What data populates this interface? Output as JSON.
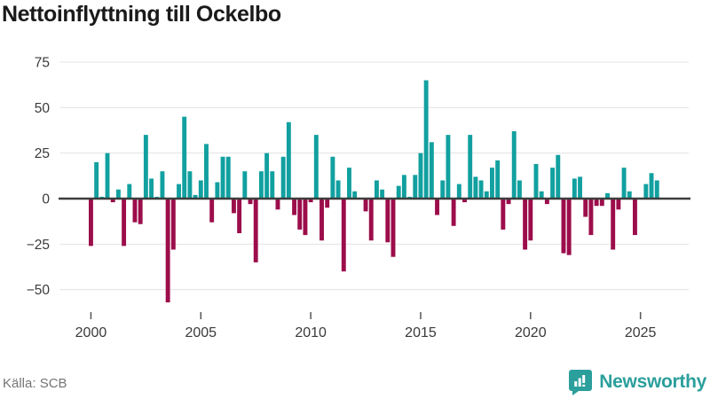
{
  "header": {
    "title": "Nettoinflyttning till Ockelbo"
  },
  "footer": {
    "source_label": "Källa: SCB",
    "brand_name": "Newsworthy"
  },
  "chart_data": {
    "type": "bar",
    "title": "Nettoinflyttning till Ockelbo",
    "frequency": "quarterly",
    "start_period": "2000 Q1",
    "end_period": "2025 Q4",
    "values": [
      -26,
      20,
      1,
      25,
      -2,
      5,
      -26,
      8,
      -13,
      -14,
      35,
      11,
      1,
      15,
      -57,
      -28,
      8,
      45,
      15,
      2,
      10,
      30,
      -13,
      9,
      23,
      23,
      -8,
      -19,
      15,
      -3,
      -35,
      15,
      25,
      15,
      -6,
      23,
      42,
      -9,
      -17,
      -20,
      -2,
      35,
      -23,
      -5,
      23,
      10,
      -40,
      17,
      4,
      0,
      -7,
      -23,
      10,
      5,
      -24,
      -32,
      7,
      13,
      1,
      13,
      25,
      65,
      31,
      -9,
      10,
      35,
      -15,
      8,
      -2,
      35,
      12,
      10,
      4,
      17,
      21,
      -17,
      -3,
      37,
      10,
      -28,
      -23,
      19,
      4,
      -3,
      17,
      24,
      -30,
      -31,
      11,
      12,
      -10,
      -20,
      -4,
      -4,
      3,
      -28,
      -6,
      17,
      4,
      -20,
      0,
      8,
      14,
      10
    ],
    "x_ticks": [
      {
        "label": "2000",
        "year": 2000
      },
      {
        "label": "2005",
        "year": 2005
      },
      {
        "label": "2010",
        "year": 2010
      },
      {
        "label": "2015",
        "year": 2015
      },
      {
        "label": "2020",
        "year": 2020
      },
      {
        "label": "2025",
        "year": 2025
      }
    ],
    "y_ticks": [
      {
        "label": "75",
        "value": 75
      },
      {
        "label": "50",
        "value": 50
      },
      {
        "label": "25",
        "value": 25
      },
      {
        "label": "0",
        "value": 0
      },
      {
        "label": "−25",
        "value": -25
      },
      {
        "label": "−50",
        "value": -50
      }
    ],
    "ylim": [
      -62,
      80
    ],
    "grid": true,
    "legend": "none",
    "positive_color": "#12a0a0",
    "negative_color": "#9c0d4b",
    "gridline_color": "#e3e3e3",
    "zero_line_color": "#3d3d3d",
    "axis_text_color": "#3a3a3a"
  }
}
